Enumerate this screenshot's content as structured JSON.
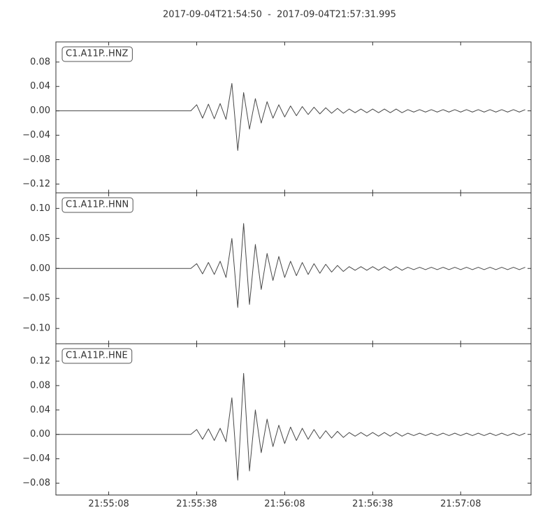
{
  "title": "2017-09-04T21:54:50  -  2017-09-04T21:57:31.995",
  "chart_data": [
    {
      "type": "line",
      "title": "C1.A11P..HNZ",
      "color": "#474747",
      "xlim": [
        0,
        161.995
      ],
      "ylim": [
        -0.135,
        0.113
      ],
      "yticks": [
        {
          "value": -0.12,
          "label": "−0.12"
        },
        {
          "value": -0.08,
          "label": "−0.08"
        },
        {
          "value": -0.04,
          "label": "−0.04"
        },
        {
          "value": 0,
          "label": "0.00"
        },
        0.04,
        0.08
      ],
      "x": [
        0,
        2,
        4,
        6,
        8,
        10,
        12,
        14,
        16,
        18,
        20,
        22,
        24,
        26,
        28,
        30,
        32,
        34,
        36,
        38,
        40,
        42,
        44,
        46,
        48,
        50,
        52,
        54,
        56,
        58,
        60,
        62,
        64,
        66,
        68,
        70,
        72,
        74,
        76,
        78,
        80,
        82,
        84,
        86,
        88,
        90,
        92,
        94,
        96,
        98,
        100,
        102,
        104,
        106,
        108,
        110,
        112,
        114,
        116,
        118,
        120,
        122,
        124,
        126,
        128,
        130,
        132,
        134,
        136,
        138,
        140,
        142,
        144,
        146,
        148,
        150,
        152,
        154,
        156,
        158,
        160
      ],
      "values": [
        0,
        0,
        0,
        0,
        0,
        0,
        0,
        0,
        0,
        0,
        0,
        0,
        0,
        0,
        0,
        0,
        0,
        0,
        0,
        0,
        0,
        0,
        0,
        0,
        0.01,
        -0.012,
        0.011,
        -0.013,
        0.012,
        -0.014,
        0.045,
        -0.065,
        0.03,
        -0.03,
        0.02,
        -0.02,
        0.015,
        -0.012,
        0.01,
        -0.01,
        0.008,
        -0.008,
        0.007,
        -0.006,
        0.006,
        -0.005,
        0.005,
        -0.004,
        0.004,
        -0.004,
        0.003,
        -0.003,
        0.003,
        -0.003,
        0.003,
        -0.003,
        0.003,
        -0.003,
        0.003,
        -0.003,
        0.002,
        -0.002,
        0.002,
        -0.002,
        0.002,
        -0.002,
        0.002,
        -0.002,
        0.002,
        -0.002,
        0.002,
        -0.002,
        0.002,
        -0.002,
        0.002,
        -0.002,
        0.002,
        -0.002,
        0.002,
        -0.002,
        0.002
      ]
    },
    {
      "type": "line",
      "title": "C1.A11P..HNN",
      "color": "#474747",
      "xlim": [
        0,
        161.995
      ],
      "ylim": [
        -0.126,
        0.126
      ],
      "yticks": [
        {
          "value": -0.1,
          "label": "−0.10"
        },
        {
          "value": -0.05,
          "label": "−0.05"
        },
        {
          "value": 0,
          "label": "0.00"
        },
        0.05,
        {
          "value": 0.1,
          "label": "0.10"
        }
      ],
      "x": [
        0,
        2,
        4,
        6,
        8,
        10,
        12,
        14,
        16,
        18,
        20,
        22,
        24,
        26,
        28,
        30,
        32,
        34,
        36,
        38,
        40,
        42,
        44,
        46,
        48,
        50,
        52,
        54,
        56,
        58,
        60,
        62,
        64,
        66,
        68,
        70,
        72,
        74,
        76,
        78,
        80,
        82,
        84,
        86,
        88,
        90,
        92,
        94,
        96,
        98,
        100,
        102,
        104,
        106,
        108,
        110,
        112,
        114,
        116,
        118,
        120,
        122,
        124,
        126,
        128,
        130,
        132,
        134,
        136,
        138,
        140,
        142,
        144,
        146,
        148,
        150,
        152,
        154,
        156,
        158,
        160
      ],
      "values": [
        0,
        0,
        0,
        0,
        0,
        0,
        0,
        0,
        0,
        0,
        0,
        0,
        0,
        0,
        0,
        0,
        0,
        0,
        0,
        0,
        0,
        0,
        0,
        0,
        0.008,
        -0.009,
        0.01,
        -0.01,
        0.012,
        -0.015,
        0.05,
        -0.065,
        0.075,
        -0.06,
        0.04,
        -0.035,
        0.025,
        -0.02,
        0.02,
        -0.015,
        0.012,
        -0.012,
        0.01,
        -0.01,
        0.008,
        -0.008,
        0.007,
        -0.006,
        0.005,
        -0.005,
        0.003,
        -0.003,
        0.003,
        -0.003,
        0.003,
        -0.003,
        0.003,
        -0.003,
        0.003,
        -0.003,
        0.002,
        -0.002,
        0.002,
        -0.002,
        0.002,
        -0.002,
        0.002,
        -0.002,
        0.002,
        -0.002,
        0.002,
        -0.002,
        0.002,
        -0.002,
        0.002,
        -0.002,
        0.002,
        -0.002,
        0.002,
        -0.002,
        0.002
      ]
    },
    {
      "type": "line",
      "title": "C1.A11P..HNE",
      "color": "#474747",
      "xlim": [
        0,
        161.995
      ],
      "xticks": [
        {
          "value": 18,
          "label": "21:55:08"
        },
        {
          "value": 48,
          "label": "21:55:38"
        },
        {
          "value": 78,
          "label": "21:56:08"
        },
        {
          "value": 108,
          "label": "21:56:38"
        },
        {
          "value": 138,
          "label": "21:57:08"
        }
      ],
      "ylim": [
        -0.0994,
        0.1486
      ],
      "yticks": [
        {
          "value": -0.08,
          "label": "−0.08"
        },
        {
          "value": -0.04,
          "label": "−0.04"
        },
        {
          "value": 0,
          "label": "0.00"
        },
        0.04,
        0.08,
        0.12
      ],
      "x": [
        0,
        2,
        4,
        6,
        8,
        10,
        12,
        14,
        16,
        18,
        20,
        22,
        24,
        26,
        28,
        30,
        32,
        34,
        36,
        38,
        40,
        42,
        44,
        46,
        48,
        50,
        52,
        54,
        56,
        58,
        60,
        62,
        64,
        66,
        68,
        70,
        72,
        74,
        76,
        78,
        80,
        82,
        84,
        86,
        88,
        90,
        92,
        94,
        96,
        98,
        100,
        102,
        104,
        106,
        108,
        110,
        112,
        114,
        116,
        118,
        120,
        122,
        124,
        126,
        128,
        130,
        132,
        134,
        136,
        138,
        140,
        142,
        144,
        146,
        148,
        150,
        152,
        154,
        156,
        158,
        160
      ],
      "values": [
        0,
        0,
        0,
        0,
        0,
        0,
        0,
        0,
        0,
        0,
        0,
        0,
        0,
        0,
        0,
        0,
        0,
        0,
        0,
        0,
        0,
        0,
        0,
        0,
        0.008,
        -0.008,
        0.009,
        -0.01,
        0.01,
        -0.012,
        0.06,
        -0.075,
        0.1,
        -0.06,
        0.04,
        -0.03,
        0.025,
        -0.02,
        0.015,
        -0.015,
        0.012,
        -0.01,
        0.01,
        -0.008,
        0.008,
        -0.007,
        0.006,
        -0.006,
        0.005,
        -0.005,
        0.003,
        -0.003,
        0.003,
        -0.003,
        0.003,
        -0.003,
        0.003,
        -0.003,
        0.003,
        -0.003,
        0.002,
        -0.002,
        0.002,
        -0.002,
        0.002,
        -0.002,
        0.002,
        -0.002,
        0.002,
        -0.002,
        0.002,
        -0.002,
        0.002,
        -0.002,
        0.002,
        -0.002,
        0.002,
        -0.002,
        0.002,
        -0.002,
        0.002
      ]
    }
  ]
}
